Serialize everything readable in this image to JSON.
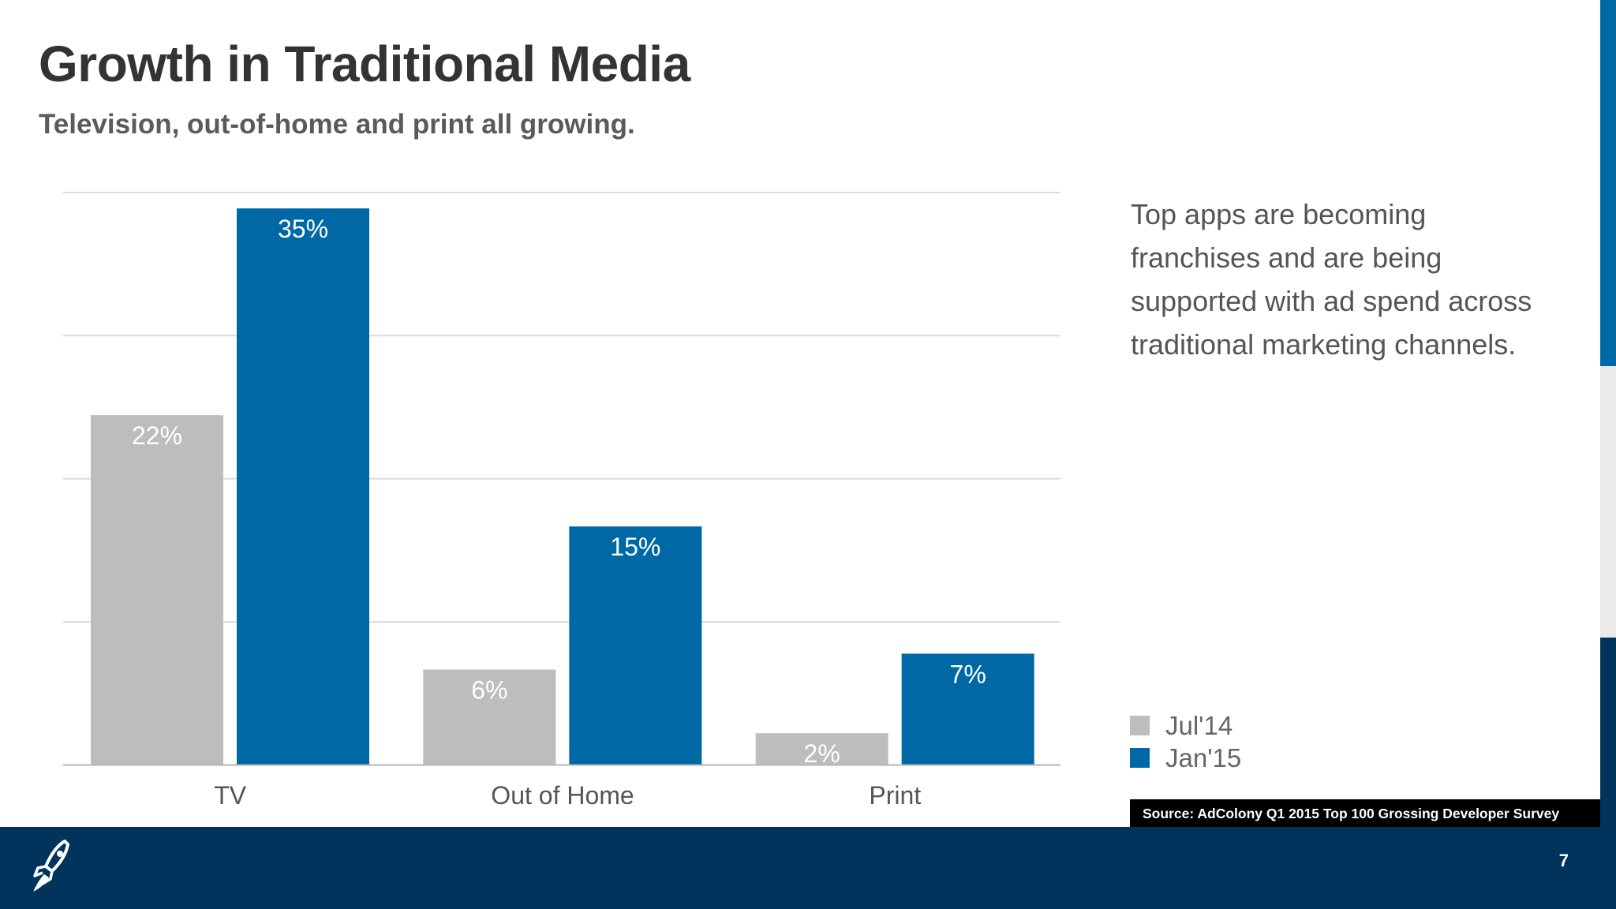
{
  "slide": {
    "title": "Growth in Traditional Media",
    "subtitle": "Television, out-of-home and print all growing.",
    "description": "Top apps are becoming franchises and are being supported with ad spend across traditional marketing channels.",
    "source": "Source: AdColony Q1 2015 Top 100 Grossing Developer Survey",
    "page_number": "7",
    "logo_icon": "rocket-icon"
  },
  "legend": [
    {
      "label": "Jul'14",
      "color": "#bdbdbd"
    },
    {
      "label": "Jan'15",
      "color": "#0068a5"
    }
  ],
  "chart_data": {
    "type": "bar",
    "categories": [
      "TV",
      "Out of Home",
      "Print"
    ],
    "series": [
      {
        "name": "Jul'14",
        "values": [
          22,
          6,
          2
        ],
        "labels": [
          "22%",
          "6%",
          "2%"
        ],
        "color": "#bdbdbd"
      },
      {
        "name": "Jan'15",
        "values": [
          35,
          15,
          7
        ],
        "labels": [
          "35%",
          "15%",
          "7%"
        ],
        "color": "#0068a5"
      }
    ],
    "ylim": [
      0,
      36
    ],
    "unit": "%",
    "grid": true,
    "legend_position": "right-bottom"
  }
}
